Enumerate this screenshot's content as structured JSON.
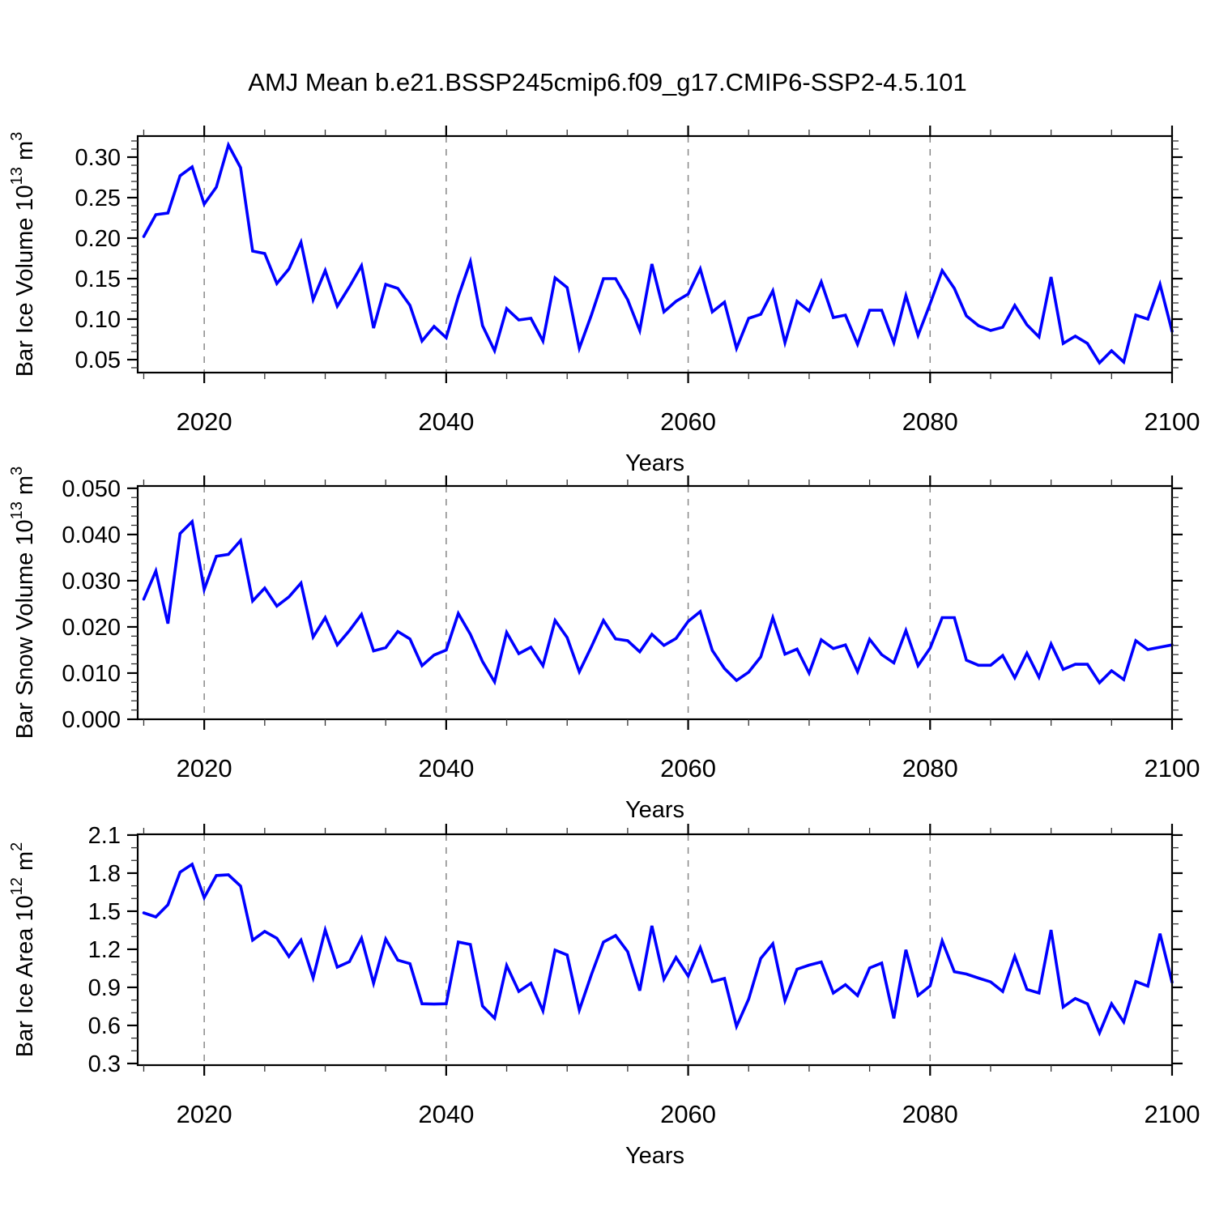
{
  "page": {
    "background": "#ffffff",
    "text_color": "#000000"
  },
  "chart_data": {
    "type": "line",
    "title": "AMJ Mean b.e21.BSSP245cmip6.f09_g17.CMIP6-SSP2-4.5.101",
    "line_color": "#0000ff",
    "gridline_color": "#888888",
    "legend": "none",
    "grid": "dashed vertical gridlines at decades 2020,2040,2060,2080",
    "x": {
      "label": "Years",
      "min": 2014.5,
      "max": 2100,
      "major_ticks": [
        2020,
        2040,
        2060,
        2080,
        2100
      ],
      "major_tick_labels": [
        "2020",
        "2040",
        "2060",
        "2080",
        "2100"
      ],
      "minor_step": 5,
      "gridlines": [
        2020,
        2040,
        2060,
        2080
      ]
    },
    "years": [
      2015,
      2016,
      2017,
      2018,
      2019,
      2020,
      2021,
      2022,
      2023,
      2024,
      2025,
      2026,
      2027,
      2028,
      2029,
      2030,
      2031,
      2032,
      2033,
      2034,
      2035,
      2036,
      2037,
      2038,
      2039,
      2040,
      2041,
      2042,
      2043,
      2044,
      2045,
      2046,
      2047,
      2048,
      2049,
      2050,
      2051,
      2052,
      2053,
      2054,
      2055,
      2056,
      2057,
      2058,
      2059,
      2060,
      2061,
      2062,
      2063,
      2064,
      2065,
      2066,
      2067,
      2068,
      2069,
      2070,
      2071,
      2072,
      2073,
      2074,
      2075,
      2076,
      2077,
      2078,
      2079,
      2080,
      2081,
      2082,
      2083,
      2084,
      2085,
      2086,
      2087,
      2088,
      2089,
      2090,
      2091,
      2092,
      2093,
      2094,
      2095,
      2096,
      2097,
      2098,
      2099,
      2100
    ],
    "panels": [
      {
        "id": "bar-ice-volume",
        "ylabel": "Bar Ice Volume 10^13 m^3",
        "ymin": 0.034,
        "ymax": 0.326,
        "yticks": [
          0.05,
          0.1,
          0.15,
          0.2,
          0.25,
          0.3
        ],
        "ytick_labels": [
          "0.05",
          "0.10",
          "0.15",
          "0.20",
          "0.25",
          "0.30"
        ],
        "yminor_step": 0.01,
        "values": [
          0.202,
          0.229,
          0.231,
          0.277,
          0.288,
          0.242,
          0.263,
          0.315,
          0.287,
          0.184,
          0.181,
          0.144,
          0.162,
          0.195,
          0.124,
          0.16,
          0.116,
          0.14,
          0.166,
          0.089,
          0.143,
          0.138,
          0.117,
          0.073,
          0.091,
          0.077,
          0.128,
          0.171,
          0.092,
          0.061,
          0.113,
          0.099,
          0.101,
          0.073,
          0.151,
          0.139,
          0.064,
          0.105,
          0.15,
          0.15,
          0.124,
          0.086,
          0.168,
          0.109,
          0.122,
          0.131,
          0.162,
          0.109,
          0.121,
          0.064,
          0.101,
          0.106,
          0.135,
          0.071,
          0.122,
          0.11,
          0.146,
          0.102,
          0.105,
          0.069,
          0.111,
          0.111,
          0.071,
          0.129,
          0.08,
          0.119,
          0.16,
          0.138,
          0.104,
          0.092,
          0.086,
          0.09,
          0.117,
          0.093,
          0.078,
          0.152,
          0.07,
          0.079,
          0.07,
          0.046,
          0.061,
          0.047,
          0.105,
          0.1,
          0.143,
          0.085
        ]
      },
      {
        "id": "bar-snow-volume",
        "ylabel": "Bar Snow Volume 10^13 m^3",
        "ymin": 0.0,
        "ymax": 0.0505,
        "yticks": [
          0.0,
          0.01,
          0.02,
          0.03,
          0.04,
          0.05
        ],
        "ytick_labels": [
          "0.000",
          "0.010",
          "0.020",
          "0.030",
          "0.040",
          "0.050"
        ],
        "yminor_step": 0.002,
        "values": [
          0.026,
          0.0321,
          0.0207,
          0.0402,
          0.0428,
          0.0281,
          0.0353,
          0.0357,
          0.0387,
          0.0256,
          0.0284,
          0.0245,
          0.0265,
          0.0295,
          0.0178,
          0.022,
          0.0161,
          0.0192,
          0.0227,
          0.0148,
          0.0155,
          0.019,
          0.0174,
          0.0116,
          0.0139,
          0.015,
          0.0229,
          0.0184,
          0.0125,
          0.0081,
          0.0188,
          0.0142,
          0.0156,
          0.0116,
          0.0214,
          0.0177,
          0.0103,
          0.0157,
          0.0214,
          0.0174,
          0.017,
          0.0146,
          0.0184,
          0.016,
          0.0175,
          0.0212,
          0.0233,
          0.0149,
          0.011,
          0.0084,
          0.0102,
          0.0135,
          0.022,
          0.0141,
          0.0152,
          0.01,
          0.0172,
          0.0153,
          0.0161,
          0.0103,
          0.0173,
          0.014,
          0.0122,
          0.0192,
          0.0116,
          0.0154,
          0.022,
          0.022,
          0.0128,
          0.0117,
          0.0117,
          0.0138,
          0.009,
          0.0143,
          0.0091,
          0.0163,
          0.0108,
          0.0119,
          0.0119,
          0.0079,
          0.0105,
          0.0086,
          0.017,
          0.0151,
          0.0156,
          0.0161
        ]
      },
      {
        "id": "bar-ice-area",
        "ylabel": "Bar Ice Area 10^12 m^2",
        "ymin": 0.287,
        "ymax": 2.106,
        "yticks": [
          0.3,
          0.6,
          0.9,
          1.2,
          1.5,
          1.8,
          2.1
        ],
        "ytick_labels": [
          "0.3",
          "0.6",
          "0.9",
          "1.2",
          "1.5",
          "1.8",
          "2.1"
        ],
        "yminor_step": 0.1,
        "values": [
          1.487,
          1.455,
          1.551,
          1.807,
          1.87,
          1.607,
          1.781,
          1.787,
          1.698,
          1.272,
          1.341,
          1.287,
          1.143,
          1.272,
          0.975,
          1.352,
          1.059,
          1.102,
          1.287,
          0.932,
          1.281,
          1.115,
          1.087,
          0.771,
          0.768,
          0.771,
          1.257,
          1.238,
          0.753,
          0.657,
          1.072,
          0.868,
          0.932,
          0.715,
          1.193,
          1.155,
          0.721,
          1.0,
          1.257,
          1.308,
          1.181,
          0.874,
          1.385,
          0.964,
          1.136,
          0.989,
          1.213,
          0.945,
          0.97,
          0.593,
          0.808,
          1.128,
          1.244,
          0.796,
          1.043,
          1.075,
          1.1,
          0.855,
          0.921,
          0.835,
          1.053,
          1.091,
          0.655,
          1.196,
          0.836,
          0.912,
          1.266,
          1.023,
          1.005,
          0.973,
          0.943,
          0.868,
          1.145,
          0.884,
          0.855,
          1.352,
          0.745,
          0.812,
          0.771,
          0.541,
          0.771,
          0.627,
          0.946,
          0.91,
          1.323,
          0.94
        ]
      }
    ]
  }
}
